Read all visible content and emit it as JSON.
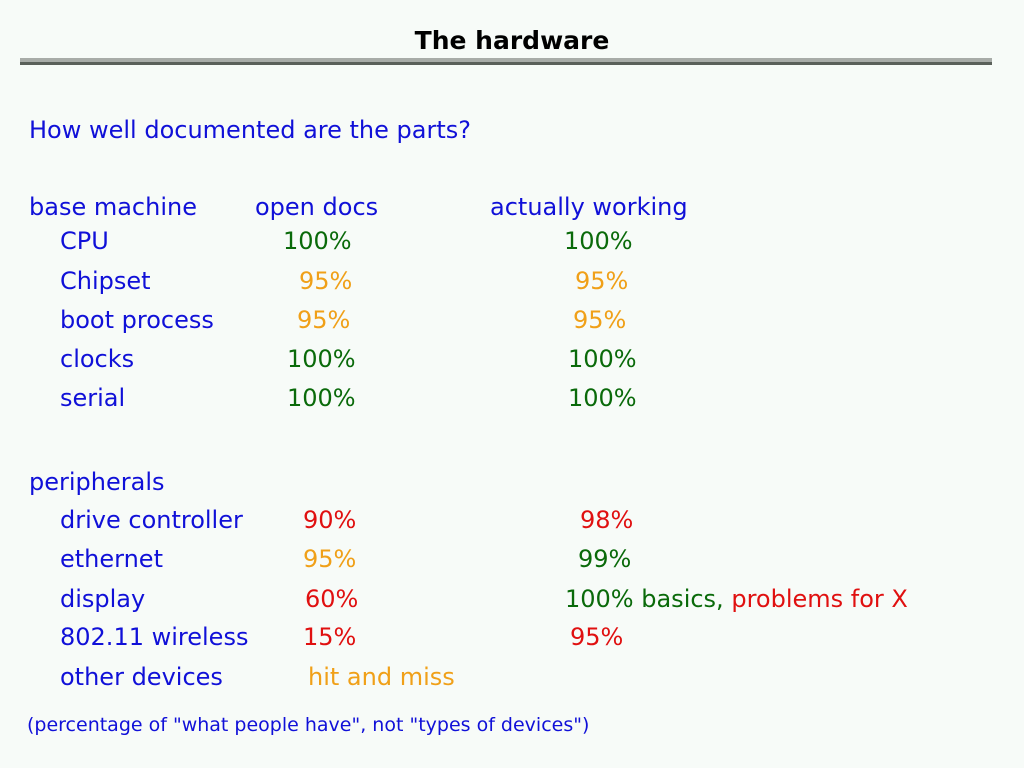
{
  "title": "The hardware",
  "question": "How well documented are the parts?",
  "headers": {
    "category": "base machine",
    "open_docs": "open docs",
    "working": "actually working"
  },
  "base_machine": [
    {
      "part": "CPU",
      "open_docs": "100%",
      "working": "100%"
    },
    {
      "part": "Chipset",
      "open_docs": "95%",
      "working": "95%"
    },
    {
      "part": "boot process",
      "open_docs": "95%",
      "working": "95%"
    },
    {
      "part": "clocks",
      "open_docs": "100%",
      "working": "100%"
    },
    {
      "part": "serial",
      "open_docs": "100%",
      "working": "100%"
    }
  ],
  "peripherals_label": "peripherals",
  "peripherals": [
    {
      "part": "drive controller",
      "open_docs": "90%",
      "working": "98%"
    },
    {
      "part": "ethernet",
      "open_docs": "95%",
      "working": "99%"
    },
    {
      "part": "display",
      "open_docs": "60%",
      "working": "100% basics,",
      "working_note": "problems for X"
    },
    {
      "part": "802.11 wireless",
      "open_docs": "15%",
      "working": "95%"
    },
    {
      "part": "other devices",
      "open_docs": "hit and miss"
    }
  ],
  "footnote": "(percentage of \"what people have\", not \"types of devices\")",
  "colors": {
    "heading": "#1010d8",
    "good": "#0a6a0a",
    "partial": "#f0a018",
    "bad": "#e01010"
  }
}
